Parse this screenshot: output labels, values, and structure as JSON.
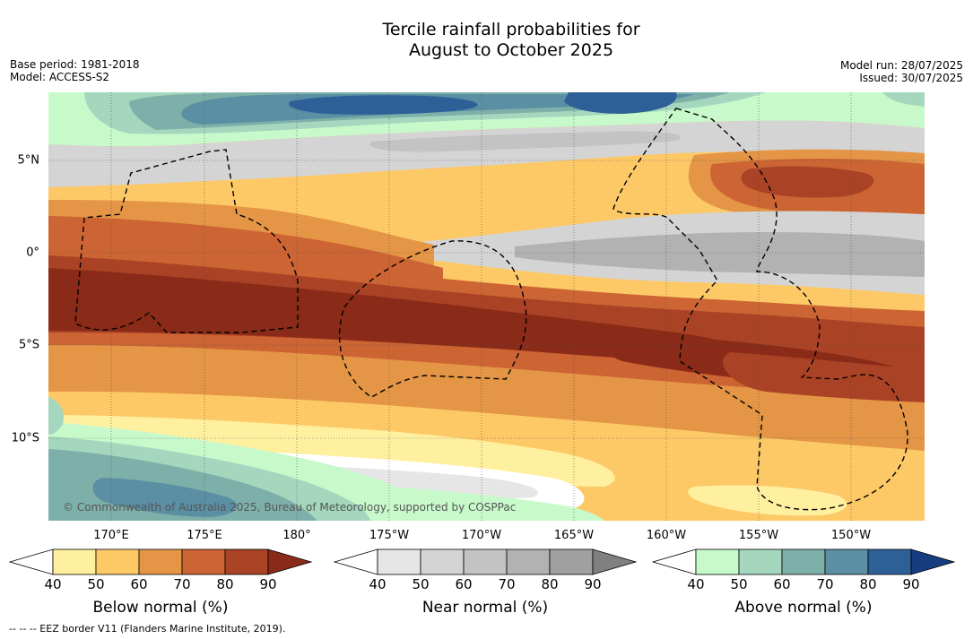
{
  "title_line1": "Tercile rainfall probabilities for",
  "title_line2": "August to October 2025",
  "meta_left": {
    "base_period": "Base period: 1981-2018",
    "model": "Model: ACCESS-S2"
  },
  "meta_right": {
    "model_run": "Model run: 28/07/2025",
    "issued": "Issued: 30/07/2025"
  },
  "map": {
    "lat_labels": [
      "5°N",
      "0°",
      "5°S",
      "10°S"
    ],
    "lon_labels": [
      "170°E",
      "175°E",
      "180°",
      "175°W",
      "170°W",
      "165°W",
      "160°W",
      "155°W",
      "150°W"
    ],
    "copyright": "© Commonwealth of Australia 2025, Bureau of Meteorology, supported by COSPPac",
    "border_color": "#000000"
  },
  "colorbars": [
    {
      "title": "Below normal (%)",
      "ticks": [
        "40",
        "50",
        "60",
        "70",
        "80",
        "90"
      ],
      "colors": [
        "#ffffff",
        "#fff0a0",
        "#fdc967",
        "#e49545",
        "#cc6433",
        "#aa4325",
        "#8a2a18"
      ]
    },
    {
      "title": "Near normal (%)",
      "ticks": [
        "40",
        "50",
        "60",
        "70",
        "80",
        "90"
      ],
      "colors": [
        "#ffffff",
        "#e6e6e6",
        "#d4d4d4",
        "#c3c3c3",
        "#b2b2b2",
        "#a0a0a0",
        "#808080"
      ]
    },
    {
      "title": "Above normal (%)",
      "ticks": [
        "40",
        "50",
        "60",
        "70",
        "80",
        "90"
      ],
      "colors": [
        "#ffffff",
        "#c8f9cb",
        "#a4d7bd",
        "#7eb0aa",
        "#5b8fa3",
        "#2e6098",
        "#163d80"
      ]
    }
  ],
  "footnote": "--  --  -- EEZ border V11 (Flanders Marine Institute, 2019)."
}
